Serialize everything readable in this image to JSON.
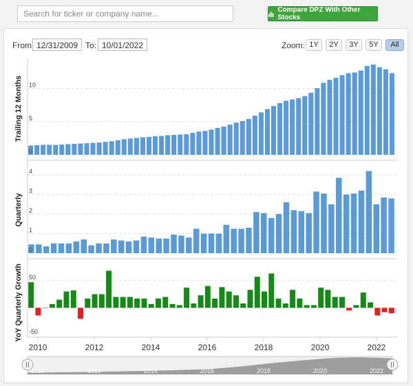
{
  "search": {
    "placeholder": "Search for ticker or company name..."
  },
  "compare_button": {
    "label": "Compare DPZ With Other Stocks",
    "icon": "bar-chart-icon"
  },
  "range": {
    "from_label": "From:",
    "from_value": "12/31/2009",
    "to_label": "To:",
    "to_value": "10/01/2022"
  },
  "zoom": {
    "label": "Zoom:",
    "options": [
      "1Y",
      "2Y",
      "3Y",
      "5Y",
      "All"
    ],
    "selected": "All"
  },
  "colors": {
    "bar_blue": "#5a9ad6",
    "bar_green": "#168a16",
    "bar_red": "#e12222",
    "navigator": "#8a8a8a"
  },
  "chart_data": [
    {
      "type": "bar",
      "ylabel": "Trailing 12 Months",
      "yticks": [
        "0",
        "5",
        "10"
      ],
      "ylim": [
        0,
        14
      ],
      "values": [
        1.4,
        1.45,
        1.5,
        1.5,
        1.5,
        1.55,
        1.6,
        1.65,
        1.7,
        1.75,
        1.8,
        1.85,
        1.95,
        2.05,
        2.2,
        2.35,
        2.45,
        2.55,
        2.65,
        2.7,
        2.8,
        2.85,
        2.95,
        3.0,
        3.05,
        3.1,
        3.3,
        3.5,
        3.6,
        3.8,
        4.05,
        4.25,
        4.55,
        4.85,
        5.1,
        5.4,
        5.9,
        6.4,
        6.9,
        7.35,
        7.8,
        8.15,
        8.35,
        8.55,
        8.85,
        9.35,
        10.05,
        10.85,
        11.3,
        11.6,
        12.0,
        12.3,
        12.4,
        12.7,
        13.4,
        13.6,
        13.2,
        12.9,
        12.3
      ]
    },
    {
      "type": "bar",
      "ylabel": "Quarterly",
      "yticks": [
        "0",
        "1",
        "2",
        "3",
        "4"
      ],
      "ylim": [
        0,
        4.5
      ],
      "values": [
        0.45,
        0.45,
        0.35,
        0.5,
        0.5,
        0.5,
        0.6,
        0.7,
        0.4,
        0.5,
        0.5,
        0.7,
        0.65,
        0.6,
        0.65,
        0.85,
        0.8,
        0.75,
        0.75,
        0.95,
        0.9,
        0.8,
        1.25,
        1.0,
        1.0,
        1.0,
        1.45,
        1.25,
        1.25,
        1.3,
        2.1,
        2.05,
        1.8,
        2.0,
        2.6,
        2.2,
        2.15,
        2.05,
        3.15,
        3.05,
        2.5,
        3.85,
        3.0,
        3.05,
        3.2,
        4.2,
        2.5,
        2.85,
        2.8
      ]
    },
    {
      "type": "bar",
      "ylabel": "YoY Quarterly Growth",
      "yticks": [
        "0",
        "50",
        "-50"
      ],
      "ylim": [
        -50,
        80
      ],
      "values": [
        47,
        -14,
        0,
        7,
        15,
        30,
        32,
        -20,
        17,
        25,
        25,
        68,
        20,
        20,
        20,
        17,
        17,
        7,
        17,
        20,
        7,
        5,
        37,
        8,
        23,
        40,
        17,
        38,
        30,
        23,
        8,
        33,
        57,
        30,
        63,
        17,
        8,
        33,
        17,
        5,
        5,
        37,
        33,
        20,
        20,
        -5,
        5,
        28,
        10,
        -14,
        -8,
        -10
      ]
    }
  ],
  "x_axis": {
    "labels": [
      "2010",
      "2012",
      "2014",
      "2016",
      "2018",
      "2020",
      "2022"
    ]
  },
  "navigator": {
    "labels": [
      "2010",
      "2012",
      "2014",
      "2016",
      "2018",
      "2020",
      "2022"
    ],
    "profile": [
      1.4,
      1.5,
      1.6,
      1.8,
      2.0,
      2.3,
      2.6,
      2.9,
      3.2,
      3.6,
      4.2,
      5.2,
      6.6,
      8.2,
      9.6,
      10.8,
      12.0,
      13.0,
      13.4,
      13.0,
      12.5
    ]
  }
}
